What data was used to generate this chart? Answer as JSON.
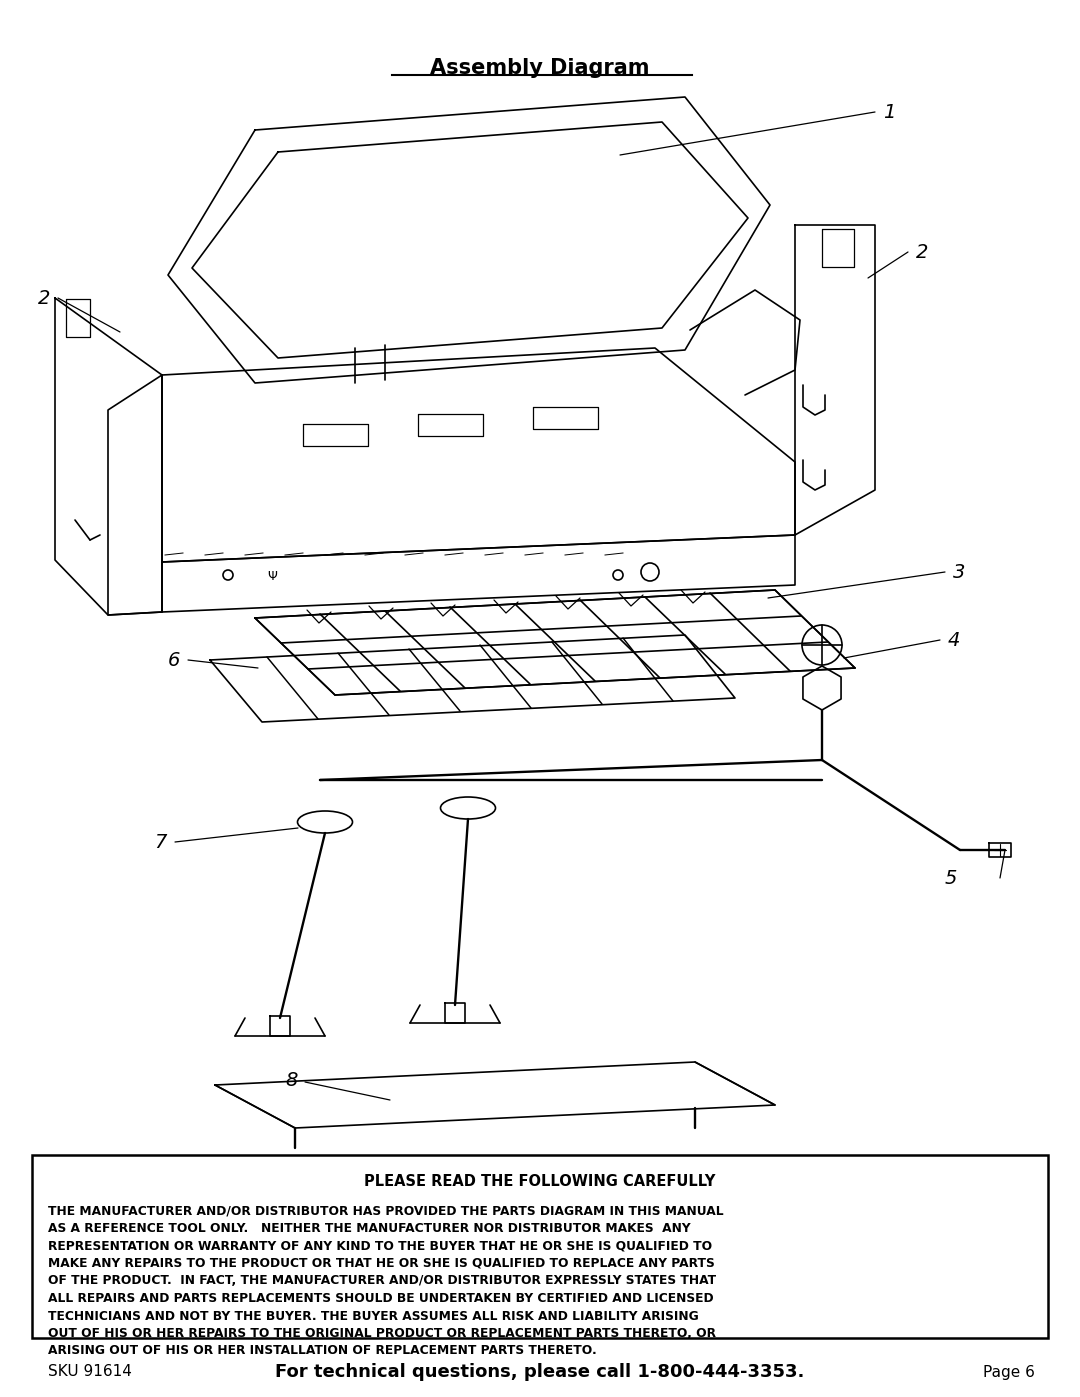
{
  "title": "Assembly Diagram",
  "bg_color": "#ffffff",
  "page_width": 10.8,
  "page_height": 13.97,
  "disclaimer_title": "PLEASE READ THE FOLLOWING CAREFULLY",
  "disclaimer_body": [
    "THE MANUFACTURER AND/OR DISTRIBUTOR HAS PROVIDED THE PARTS DIAGRAM IN THIS MANUAL",
    "AS A REFERENCE TOOL ONLY.   NEITHER THE MANUFACTURER NOR DISTRIBUTOR MAKES  ANY",
    "REPRESENTATION OR WARRANTY OF ANY KIND TO THE BUYER THAT HE OR SHE IS QUALIFIED TO",
    "MAKE ANY REPAIRS TO THE PRODUCT OR THAT HE OR SHE IS QUALIFIED TO REPLACE ANY PARTS",
    "OF THE PRODUCT.  IN FACT, THE MANUFACTURER AND/OR DISTRIBUTOR EXPRESSLY STATES THAT",
    "ALL REPAIRS AND PARTS REPLACEMENTS SHOULD BE UNDERTAKEN BY CERTIFIED AND LICENSED",
    "TECHNICIANS AND NOT BY THE BUYER. THE BUYER ASSUMES ALL RISK AND LIABILITY ARISING",
    "OUT OF HIS OR HER REPAIRS TO THE ORIGINAL PRODUCT OR REPLACEMENT PARTS THERETO, OR",
    "ARISING OUT OF HIS OR HER INSTALLATION OF REPLACEMENT PARTS THERETO."
  ],
  "footer_sku": "SKU 91614",
  "footer_center": "For technical questions, please call 1-800-444-3353.",
  "footer_page": "Page 6"
}
